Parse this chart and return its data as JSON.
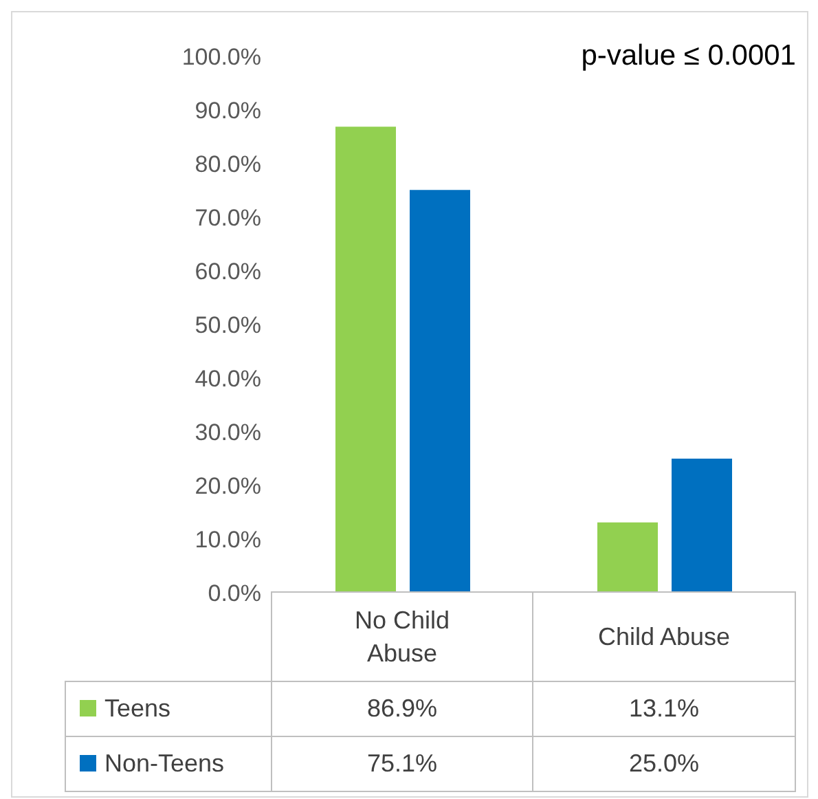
{
  "chart_data": {
    "type": "bar",
    "categories": [
      "No Child Abuse",
      "Child Abuse"
    ],
    "series": [
      {
        "name": "Teens",
        "color": "#92d050",
        "values": [
          86.9,
          13.1
        ],
        "value_labels": [
          "86.9%",
          "13.1%"
        ]
      },
      {
        "name": "Non-Teens",
        "color": "#0070c0",
        "values": [
          75.1,
          25.0
        ],
        "value_labels": [
          "75.1%",
          "25.0%"
        ]
      }
    ],
    "ylim": [
      0,
      100
    ],
    "yticks": [
      {
        "value": 0,
        "label": "0.0%"
      },
      {
        "value": 10,
        "label": "10.0%"
      },
      {
        "value": 20,
        "label": "20.0%"
      },
      {
        "value": 30,
        "label": "30.0%"
      },
      {
        "value": 40,
        "label": "40.0%"
      },
      {
        "value": 50,
        "label": "50.0%"
      },
      {
        "value": 60,
        "label": "60.0%"
      },
      {
        "value": 70,
        "label": "70.0%"
      },
      {
        "value": 80,
        "label": "80.0%"
      },
      {
        "value": 90,
        "label": "90.0%"
      },
      {
        "value": 100,
        "label": "100.0%"
      }
    ],
    "legend": "bottom",
    "annotations": [
      "p-value ≤ 0.0001"
    ]
  }
}
